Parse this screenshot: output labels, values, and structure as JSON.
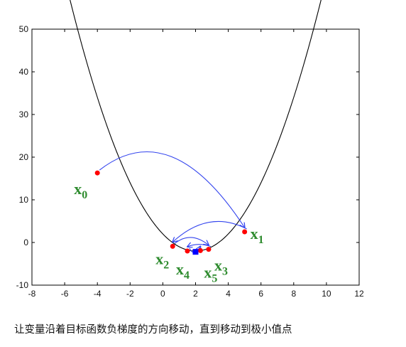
{
  "chart_data": {
    "type": "line",
    "title": "",
    "xlabel": "",
    "ylabel": "",
    "xlim": [
      -8,
      12
    ],
    "ylim": [
      -10,
      50
    ],
    "grid": false,
    "x_ticks": [
      -8,
      -6,
      -4,
      -2,
      0,
      2,
      4,
      6,
      8,
      10,
      12
    ],
    "y_ticks": [
      -10,
      0,
      10,
      20,
      30,
      40,
      50
    ],
    "curve": {
      "function": "(x-2)^2 - 2",
      "x_range": [
        -8,
        12
      ],
      "color": "#000000"
    },
    "iterates": [
      {
        "label": "x",
        "sub": "0",
        "x": -4.0,
        "y": 16.3
      },
      {
        "label": "x",
        "sub": "1",
        "x": 5.0,
        "y": 2.5
      },
      {
        "label": "x",
        "sub": "2",
        "x": 0.6,
        "y": -0.9
      },
      {
        "label": "x",
        "sub": "3",
        "x": 2.8,
        "y": -1.6
      },
      {
        "label": "x",
        "sub": "4",
        "x": 1.5,
        "y": -2.0
      },
      {
        "label": "x",
        "sub": "5",
        "x": 2.3,
        "y": -1.9
      }
    ],
    "minimum": {
      "x": 2.0,
      "y": -2.2
    },
    "colors": {
      "curve": "#000000",
      "points": "#ff0000",
      "minimum": "#0000ff",
      "arrows": "#3344ee",
      "labels": "#2e8b2e"
    }
  },
  "caption": "让变量沿着目标函数负梯度的方向移动，直到移动到极小值点"
}
